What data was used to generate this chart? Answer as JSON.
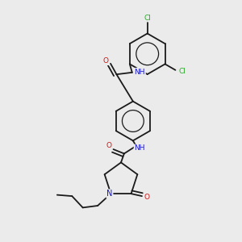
{
  "background_color": "#ebebeb",
  "bond_color": "#1a1a1a",
  "atom_colors": {
    "N": "#1414cc",
    "O": "#cc1414",
    "Cl": "#22aa22",
    "H": "#4aadad"
  },
  "figsize": [
    3.0,
    3.0
  ],
  "dpi": 100
}
